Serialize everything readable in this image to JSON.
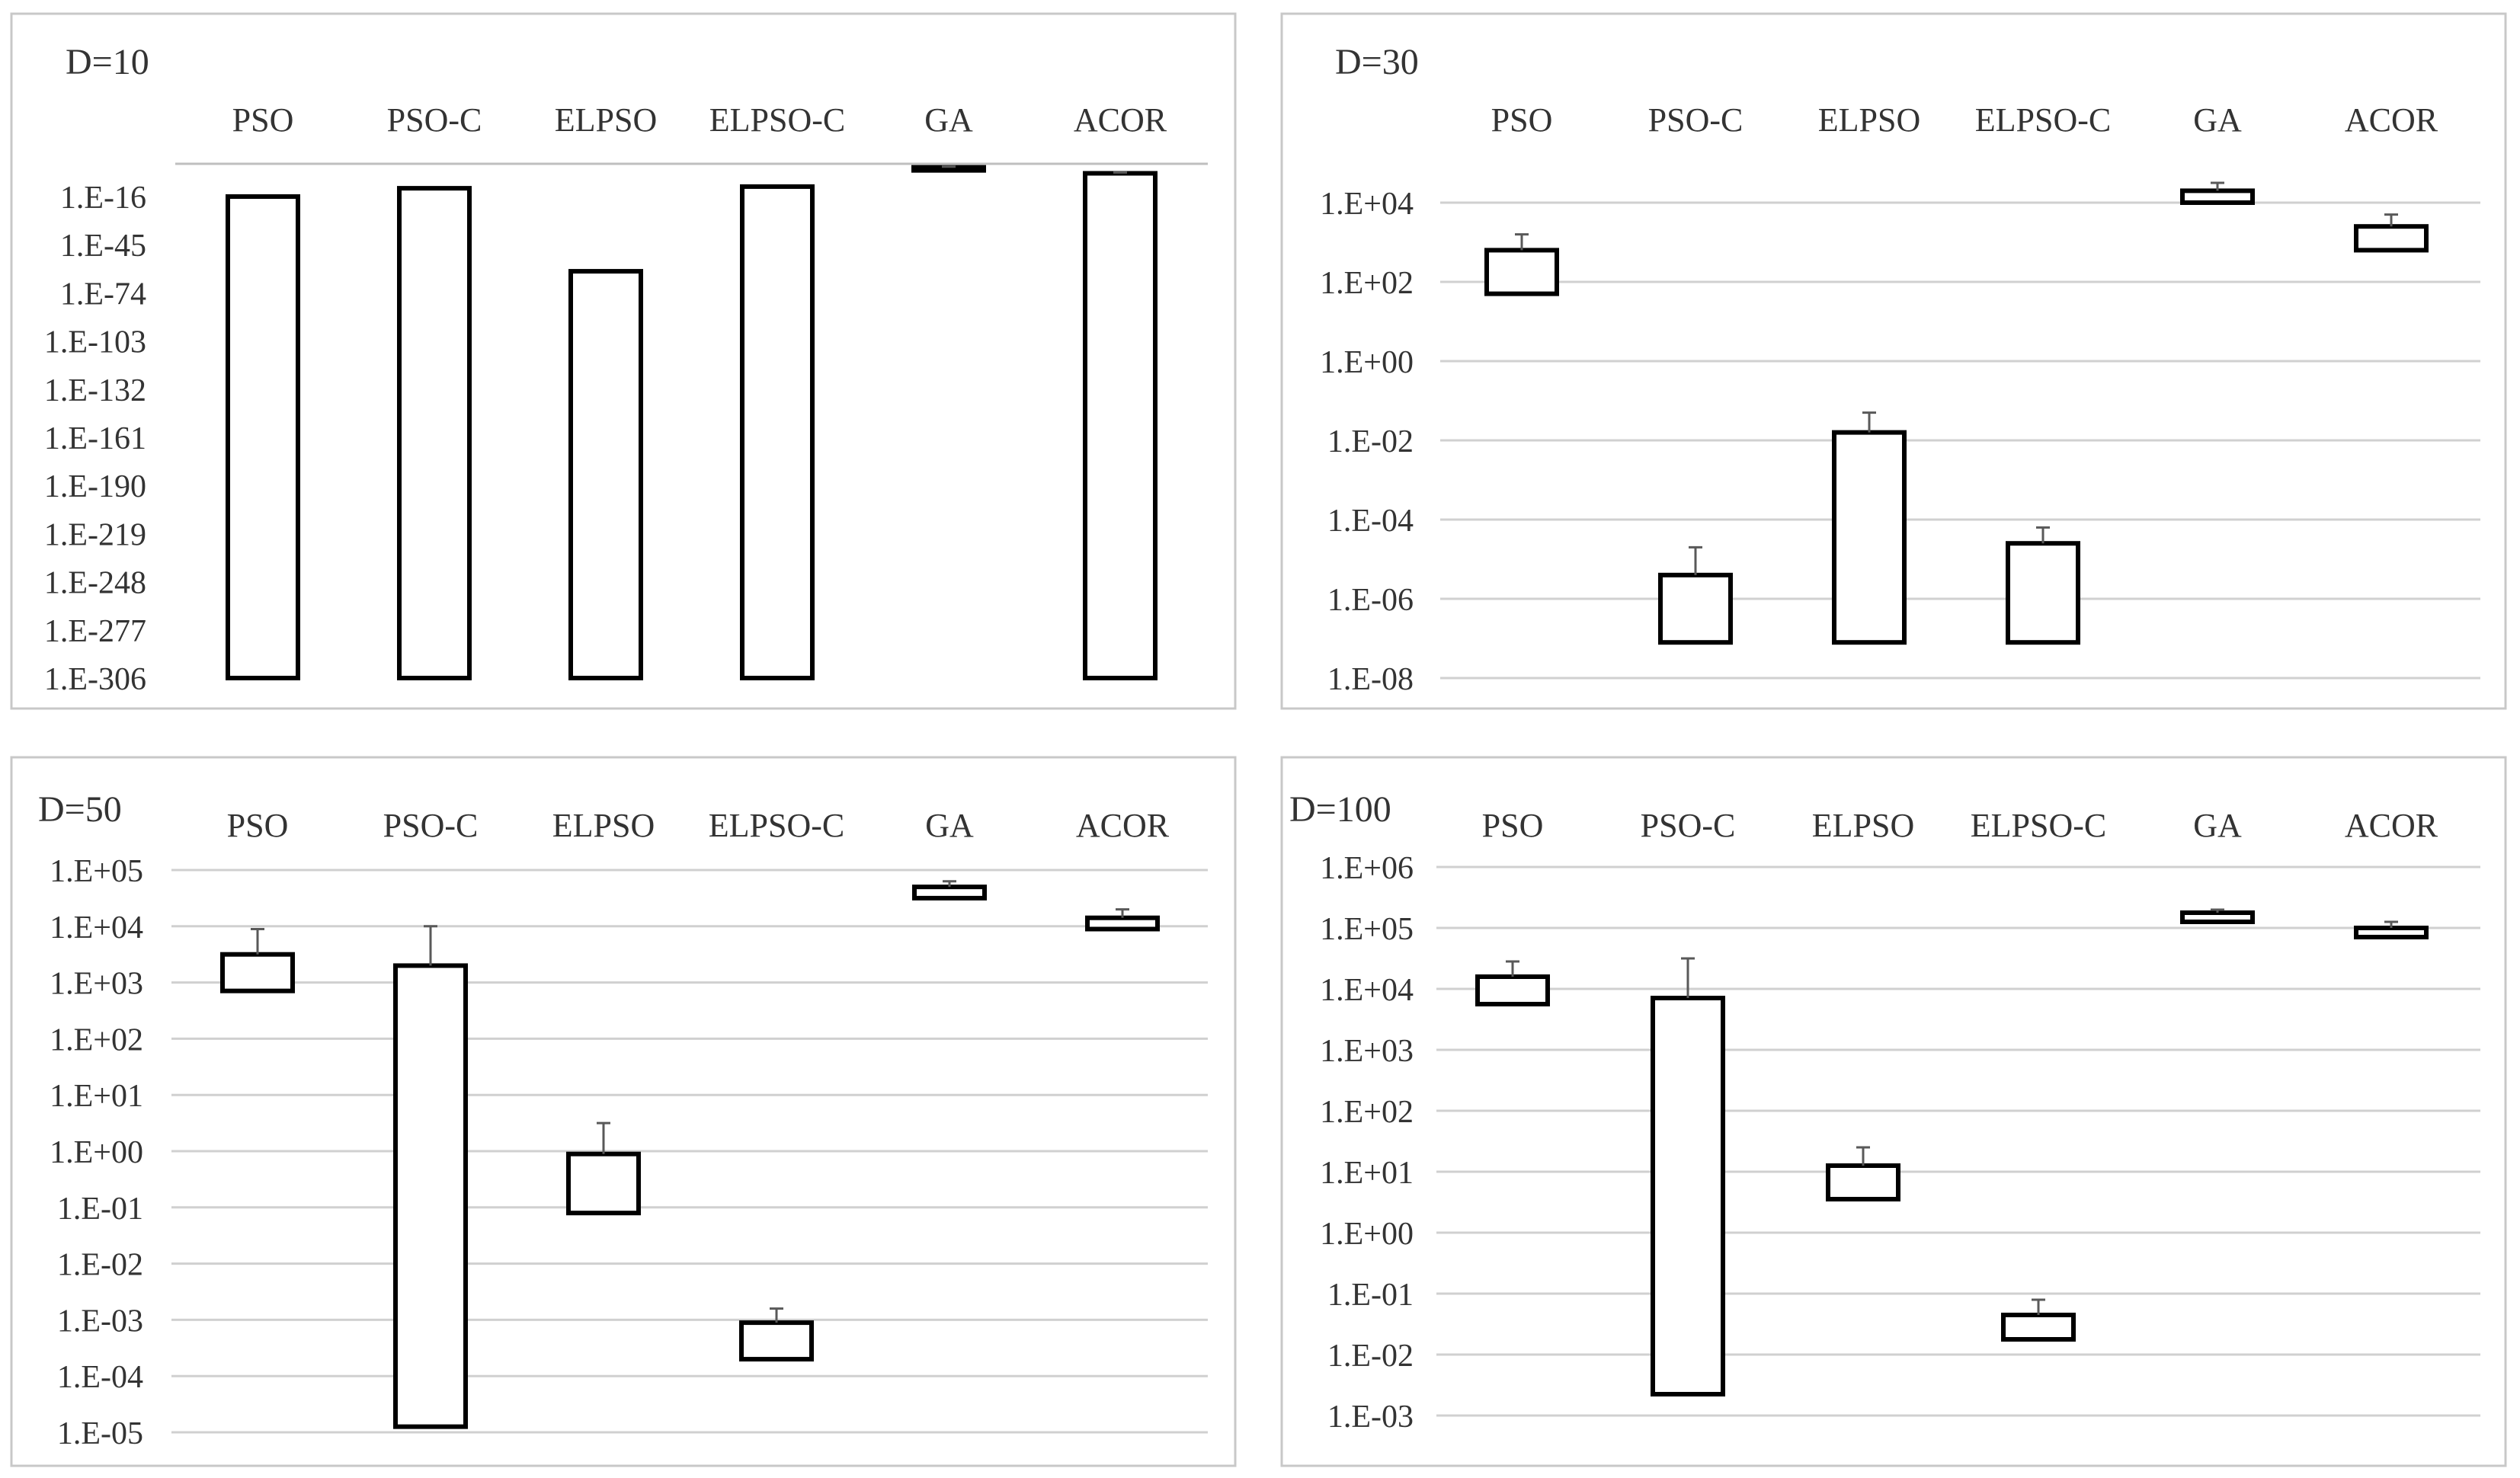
{
  "chart_data": [
    {
      "type": "bar",
      "title": "D=10",
      "categories": [
        "PSO",
        "PSO-C",
        "ELPSO",
        "ELPSO-C",
        "GA",
        "ACOR"
      ],
      "y_tick_labels": [
        "1.E-16",
        "1.E-45",
        "1.E-74",
        "1.E-103",
        "1.E-132",
        "1.E-161",
        "1.E-190",
        "1.E-219",
        "1.E-248",
        "1.E-277",
        "1.E-306"
      ],
      "y_scale": "log10",
      "y_ticks_log": [
        -16,
        -45,
        -74,
        -103,
        -132,
        -161,
        -190,
        -219,
        -248,
        -277,
        -306
      ],
      "ylim_log": [
        -306,
        2
      ],
      "floating_bars": true,
      "bars_log10": [
        {
          "low": -306,
          "high": -16
        },
        {
          "low": -306,
          "high": -11
        },
        {
          "low": -306,
          "high": -61
        },
        {
          "low": -306,
          "high": -10
        },
        {
          "low": 1,
          "high": 1.6
        },
        {
          "low": -306,
          "high": -2
        }
      ],
      "error_top_log10": [
        -16,
        -11,
        -61,
        -10,
        2,
        -1.5
      ],
      "grid": true
    },
    {
      "type": "bar",
      "title": "D=30",
      "categories": [
        "PSO",
        "PSO-C",
        "ELPSO",
        "ELPSO-C",
        "GA",
        "ACOR"
      ],
      "y_tick_labels": [
        "1.E+04",
        "1.E+02",
        "1.E+00",
        "1.E-02",
        "1.E-04",
        "1.E-06",
        "1.E-08"
      ],
      "y_scale": "log10",
      "y_ticks_log": [
        4,
        2,
        0,
        -2,
        -4,
        -6,
        -8
      ],
      "ylim_log": [
        -8,
        5
      ],
      "floating_bars": true,
      "bars_log10": [
        {
          "low": 1.7,
          "high": 2.8
        },
        {
          "low": -7.1,
          "high": -5.4
        },
        {
          "low": -7.1,
          "high": -1.8
        },
        {
          "low": -7.1,
          "high": -4.6
        },
        {
          "low": 4.0,
          "high": 4.3
        },
        {
          "low": 2.8,
          "high": 3.4
        }
      ],
      "error_top_log10": [
        3.2,
        -4.7,
        -1.3,
        -4.2,
        4.5,
        3.7
      ],
      "grid": true
    },
    {
      "type": "bar",
      "title": "D=50",
      "categories": [
        "PSO",
        "PSO-C",
        "ELPSO",
        "ELPSO-C",
        "GA",
        "ACOR"
      ],
      "y_tick_labels": [
        "1.E+05",
        "1.E+04",
        "1.E+03",
        "1.E+02",
        "1.E+01",
        "1.E+00",
        "1.E-01",
        "1.E-02",
        "1.E-03",
        "1.E-04",
        "1.E-05"
      ],
      "y_scale": "log10",
      "y_ticks_log": [
        5,
        4,
        3,
        2,
        1,
        0,
        -1,
        -2,
        -3,
        -4,
        -5
      ],
      "ylim_log": [
        -5,
        5
      ],
      "floating_bars": true,
      "bars_log10": [
        {
          "low": 2.85,
          "high": 3.5
        },
        {
          "low": -4.9,
          "high": 3.3
        },
        {
          "low": -1.1,
          "high": -0.05
        },
        {
          "low": -3.7,
          "high": -3.05
        },
        {
          "low": 4.5,
          "high": 4.7
        },
        {
          "low": 3.95,
          "high": 4.15
        }
      ],
      "error_top_log10": [
        3.95,
        4.0,
        0.5,
        -2.8,
        4.8,
        4.3
      ],
      "grid": true
    },
    {
      "type": "bar",
      "title": "D=100",
      "categories": [
        "PSO",
        "PSO-C",
        "ELPSO",
        "ELPSO-C",
        "GA",
        "ACOR"
      ],
      "y_tick_labels": [
        "1.E+06",
        "1.E+05",
        "1.E+04",
        "1.E+03",
        "1.E+02",
        "1.E+01",
        "1.E+00",
        "1.E-01",
        "1.E-02",
        "1.E-03"
      ],
      "y_scale": "log10",
      "y_ticks_log": [
        6,
        5,
        4,
        3,
        2,
        1,
        0,
        -1,
        -2,
        -3
      ],
      "ylim_log": [
        -3,
        6
      ],
      "floating_bars": true,
      "bars_log10": [
        {
          "low": 3.75,
          "high": 4.2
        },
        {
          "low": -2.65,
          "high": 3.85
        },
        {
          "low": 0.55,
          "high": 1.1
        },
        {
          "low": -1.75,
          "high": -1.35
        },
        {
          "low": 5.1,
          "high": 5.25
        },
        {
          "low": 4.85,
          "high": 5.0
        }
      ],
      "error_top_log10": [
        4.45,
        4.5,
        1.4,
        -1.1,
        5.3,
        5.1
      ],
      "grid": true
    }
  ]
}
